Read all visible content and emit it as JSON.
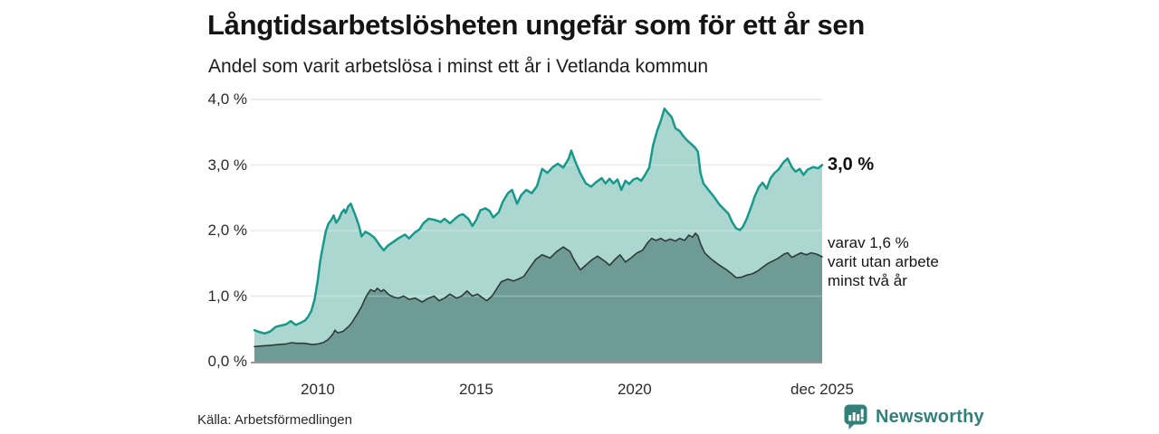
{
  "header": {
    "title": "Långtidsarbetslösheten ungefär som för ett år sen",
    "subtitle": "Andel som varit arbetslösa i minst ett år i Vetlanda kommun"
  },
  "chart_data": {
    "type": "area",
    "title": "Långtidsarbetslösheten ungefär som för ett år sen",
    "subtitle": "Andel som varit arbetslösa i minst ett år i Vetlanda kommun",
    "x_unit": "decimal_year",
    "x_domain": [
      2008.0,
      2025.92
    ],
    "y_domain": [
      0,
      4.0
    ],
    "grid": "horizontal",
    "y_axis": {
      "ticks": [
        {
          "value": 4.0,
          "label": "4,0 %"
        },
        {
          "value": 3.0,
          "label": "3,0 %"
        },
        {
          "value": 2.0,
          "label": "2,0 %"
        },
        {
          "value": 1.0,
          "label": "1,0 %"
        },
        {
          "value": 0.0,
          "label": "0,0 %"
        }
      ]
    },
    "x_axis": {
      "ticks": [
        {
          "year": 2010,
          "label": "2010"
        },
        {
          "year": 2015,
          "label": "2015"
        },
        {
          "year": 2020,
          "label": "2020"
        },
        {
          "year": 2025.92,
          "label": "dec 2025"
        }
      ]
    },
    "series": [
      {
        "name": "Andel arbetslösa minst ett år",
        "color": "#17998b",
        "fill": "#abd7d0",
        "stroke_width": 2.5,
        "points": [
          [
            2008.0,
            0.48
          ],
          [
            2008.17,
            0.45
          ],
          [
            2008.33,
            0.43
          ],
          [
            2008.5,
            0.46
          ],
          [
            2008.67,
            0.53
          ],
          [
            2008.83,
            0.55
          ],
          [
            2009.0,
            0.57
          ],
          [
            2009.15,
            0.62
          ],
          [
            2009.3,
            0.56
          ],
          [
            2009.45,
            0.59
          ],
          [
            2009.6,
            0.63
          ],
          [
            2009.7,
            0.69
          ],
          [
            2009.8,
            0.78
          ],
          [
            2009.9,
            0.95
          ],
          [
            2010.0,
            1.25
          ],
          [
            2010.08,
            1.55
          ],
          [
            2010.17,
            1.78
          ],
          [
            2010.25,
            1.98
          ],
          [
            2010.33,
            2.1
          ],
          [
            2010.42,
            2.16
          ],
          [
            2010.5,
            2.23
          ],
          [
            2010.58,
            2.12
          ],
          [
            2010.67,
            2.18
          ],
          [
            2010.75,
            2.27
          ],
          [
            2010.83,
            2.32
          ],
          [
            2010.88,
            2.27
          ],
          [
            2010.96,
            2.37
          ],
          [
            2011.04,
            2.41
          ],
          [
            2011.13,
            2.3
          ],
          [
            2011.21,
            2.2
          ],
          [
            2011.3,
            2.07
          ],
          [
            2011.38,
            1.91
          ],
          [
            2011.5,
            1.98
          ],
          [
            2011.63,
            1.95
          ],
          [
            2011.79,
            1.89
          ],
          [
            2011.96,
            1.77
          ],
          [
            2012.08,
            1.7
          ],
          [
            2012.21,
            1.77
          ],
          [
            2012.33,
            1.81
          ],
          [
            2012.54,
            1.88
          ],
          [
            2012.75,
            1.94
          ],
          [
            2012.88,
            1.88
          ],
          [
            2013.04,
            1.96
          ],
          [
            2013.21,
            2.02
          ],
          [
            2013.33,
            2.11
          ],
          [
            2013.5,
            2.18
          ],
          [
            2013.71,
            2.16
          ],
          [
            2013.88,
            2.13
          ],
          [
            2014.0,
            2.18
          ],
          [
            2014.17,
            2.11
          ],
          [
            2014.33,
            2.18
          ],
          [
            2014.46,
            2.23
          ],
          [
            2014.58,
            2.25
          ],
          [
            2014.75,
            2.18
          ],
          [
            2014.88,
            2.07
          ],
          [
            2015.0,
            2.16
          ],
          [
            2015.13,
            2.31
          ],
          [
            2015.29,
            2.34
          ],
          [
            2015.42,
            2.3
          ],
          [
            2015.54,
            2.2
          ],
          [
            2015.71,
            2.28
          ],
          [
            2015.83,
            2.43
          ],
          [
            2016.0,
            2.57
          ],
          [
            2016.13,
            2.62
          ],
          [
            2016.29,
            2.41
          ],
          [
            2016.42,
            2.54
          ],
          [
            2016.58,
            2.62
          ],
          [
            2016.75,
            2.57
          ],
          [
            2016.92,
            2.68
          ],
          [
            2017.08,
            2.94
          ],
          [
            2017.25,
            2.88
          ],
          [
            2017.42,
            2.97
          ],
          [
            2017.58,
            3.02
          ],
          [
            2017.75,
            2.96
          ],
          [
            2017.92,
            3.1
          ],
          [
            2018.0,
            3.22
          ],
          [
            2018.13,
            3.05
          ],
          [
            2018.29,
            2.87
          ],
          [
            2018.46,
            2.72
          ],
          [
            2018.63,
            2.67
          ],
          [
            2018.79,
            2.74
          ],
          [
            2018.96,
            2.8
          ],
          [
            2019.08,
            2.72
          ],
          [
            2019.21,
            2.79
          ],
          [
            2019.33,
            2.72
          ],
          [
            2019.46,
            2.78
          ],
          [
            2019.58,
            2.62
          ],
          [
            2019.71,
            2.76
          ],
          [
            2019.83,
            2.71
          ],
          [
            2019.96,
            2.78
          ],
          [
            2020.08,
            2.8
          ],
          [
            2020.21,
            2.76
          ],
          [
            2020.33,
            2.85
          ],
          [
            2020.46,
            2.96
          ],
          [
            2020.58,
            3.3
          ],
          [
            2020.71,
            3.52
          ],
          [
            2020.83,
            3.68
          ],
          [
            2020.94,
            3.86
          ],
          [
            2021.04,
            3.8
          ],
          [
            2021.17,
            3.73
          ],
          [
            2021.29,
            3.56
          ],
          [
            2021.42,
            3.52
          ],
          [
            2021.54,
            3.44
          ],
          [
            2021.67,
            3.37
          ],
          [
            2021.79,
            3.32
          ],
          [
            2021.92,
            3.26
          ],
          [
            2022.0,
            3.2
          ],
          [
            2022.08,
            2.88
          ],
          [
            2022.17,
            2.72
          ],
          [
            2022.33,
            2.62
          ],
          [
            2022.5,
            2.52
          ],
          [
            2022.67,
            2.4
          ],
          [
            2022.83,
            2.32
          ],
          [
            2022.96,
            2.26
          ],
          [
            2023.08,
            2.13
          ],
          [
            2023.21,
            2.03
          ],
          [
            2023.33,
            2.01
          ],
          [
            2023.42,
            2.06
          ],
          [
            2023.54,
            2.18
          ],
          [
            2023.67,
            2.35
          ],
          [
            2023.79,
            2.52
          ],
          [
            2023.92,
            2.66
          ],
          [
            2024.04,
            2.73
          ],
          [
            2024.17,
            2.64
          ],
          [
            2024.29,
            2.8
          ],
          [
            2024.42,
            2.88
          ],
          [
            2024.54,
            2.93
          ],
          [
            2024.71,
            3.05
          ],
          [
            2024.83,
            3.1
          ],
          [
            2024.96,
            2.97
          ],
          [
            2025.08,
            2.9
          ],
          [
            2025.21,
            2.94
          ],
          [
            2025.33,
            2.85
          ],
          [
            2025.46,
            2.93
          ],
          [
            2025.63,
            2.97
          ],
          [
            2025.79,
            2.95
          ],
          [
            2025.92,
            3.0
          ]
        ]
      },
      {
        "name": "varav utan arbete minst två år",
        "color": "#2e3b38",
        "fill": "#6f9b97",
        "stroke_width": 1.6,
        "points": [
          [
            2008.0,
            0.23
          ],
          [
            2008.25,
            0.24
          ],
          [
            2008.5,
            0.25
          ],
          [
            2008.75,
            0.26
          ],
          [
            2009.0,
            0.27
          ],
          [
            2009.17,
            0.29
          ],
          [
            2009.33,
            0.28
          ],
          [
            2009.58,
            0.28
          ],
          [
            2009.83,
            0.26
          ],
          [
            2010.0,
            0.27
          ],
          [
            2010.17,
            0.29
          ],
          [
            2010.33,
            0.34
          ],
          [
            2010.46,
            0.41
          ],
          [
            2010.54,
            0.48
          ],
          [
            2010.63,
            0.44
          ],
          [
            2010.79,
            0.46
          ],
          [
            2010.96,
            0.53
          ],
          [
            2011.08,
            0.6
          ],
          [
            2011.25,
            0.73
          ],
          [
            2011.38,
            0.84
          ],
          [
            2011.5,
            0.97
          ],
          [
            2011.58,
            1.04
          ],
          [
            2011.67,
            1.1
          ],
          [
            2011.79,
            1.07
          ],
          [
            2011.88,
            1.12
          ],
          [
            2012.0,
            1.07
          ],
          [
            2012.08,
            1.1
          ],
          [
            2012.25,
            1.02
          ],
          [
            2012.42,
            0.98
          ],
          [
            2012.54,
            0.97
          ],
          [
            2012.71,
            1.0
          ],
          [
            2012.88,
            0.95
          ],
          [
            2013.08,
            0.97
          ],
          [
            2013.29,
            0.91
          ],
          [
            2013.5,
            0.97
          ],
          [
            2013.67,
            1.0
          ],
          [
            2013.83,
            0.93
          ],
          [
            2014.0,
            0.97
          ],
          [
            2014.17,
            1.03
          ],
          [
            2014.38,
            0.97
          ],
          [
            2014.54,
            1.0
          ],
          [
            2014.71,
            1.08
          ],
          [
            2014.88,
            1.0
          ],
          [
            2015.04,
            1.03
          ],
          [
            2015.21,
            0.97
          ],
          [
            2015.33,
            0.93
          ],
          [
            2015.5,
            1.0
          ],
          [
            2015.63,
            1.1
          ],
          [
            2015.79,
            1.22
          ],
          [
            2016.0,
            1.26
          ],
          [
            2016.17,
            1.23
          ],
          [
            2016.33,
            1.26
          ],
          [
            2016.5,
            1.3
          ],
          [
            2016.67,
            1.42
          ],
          [
            2016.88,
            1.56
          ],
          [
            2017.08,
            1.63
          ],
          [
            2017.33,
            1.58
          ],
          [
            2017.54,
            1.68
          ],
          [
            2017.75,
            1.75
          ],
          [
            2017.96,
            1.68
          ],
          [
            2018.08,
            1.56
          ],
          [
            2018.29,
            1.4
          ],
          [
            2018.5,
            1.49
          ],
          [
            2018.67,
            1.56
          ],
          [
            2018.83,
            1.61
          ],
          [
            2019.04,
            1.54
          ],
          [
            2019.21,
            1.47
          ],
          [
            2019.38,
            1.56
          ],
          [
            2019.54,
            1.63
          ],
          [
            2019.71,
            1.52
          ],
          [
            2019.88,
            1.58
          ],
          [
            2020.08,
            1.66
          ],
          [
            2020.25,
            1.7
          ],
          [
            2020.42,
            1.82
          ],
          [
            2020.54,
            1.88
          ],
          [
            2020.67,
            1.85
          ],
          [
            2020.83,
            1.88
          ],
          [
            2020.96,
            1.84
          ],
          [
            2021.13,
            1.87
          ],
          [
            2021.29,
            1.84
          ],
          [
            2021.42,
            1.88
          ],
          [
            2021.58,
            1.85
          ],
          [
            2021.71,
            1.93
          ],
          [
            2021.83,
            1.9
          ],
          [
            2021.92,
            1.96
          ],
          [
            2022.0,
            1.92
          ],
          [
            2022.08,
            1.8
          ],
          [
            2022.21,
            1.66
          ],
          [
            2022.38,
            1.58
          ],
          [
            2022.54,
            1.52
          ],
          [
            2022.71,
            1.46
          ],
          [
            2022.88,
            1.41
          ],
          [
            2023.04,
            1.35
          ],
          [
            2023.21,
            1.28
          ],
          [
            2023.38,
            1.29
          ],
          [
            2023.54,
            1.32
          ],
          [
            2023.71,
            1.34
          ],
          [
            2023.88,
            1.38
          ],
          [
            2024.04,
            1.44
          ],
          [
            2024.21,
            1.5
          ],
          [
            2024.38,
            1.54
          ],
          [
            2024.54,
            1.58
          ],
          [
            2024.71,
            1.64
          ],
          [
            2024.83,
            1.66
          ],
          [
            2024.96,
            1.59
          ],
          [
            2025.08,
            1.62
          ],
          [
            2025.25,
            1.66
          ],
          [
            2025.42,
            1.63
          ],
          [
            2025.58,
            1.66
          ],
          [
            2025.75,
            1.64
          ],
          [
            2025.92,
            1.6
          ]
        ]
      }
    ],
    "annotations": {
      "total": {
        "value": 3.0,
        "label": "3,0 %"
      },
      "secondary": {
        "value": 1.6,
        "lines": [
          "varav 1,6 %",
          "varit utan arbete",
          "minst två år"
        ]
      }
    },
    "colors": {
      "gridline": "#e5e5ea",
      "baseline": "#96969b",
      "brand_teal": "#33807a"
    }
  },
  "footer": {
    "source": "Källa: Arbetsförmedlingen",
    "brand": "Newsworthy"
  }
}
